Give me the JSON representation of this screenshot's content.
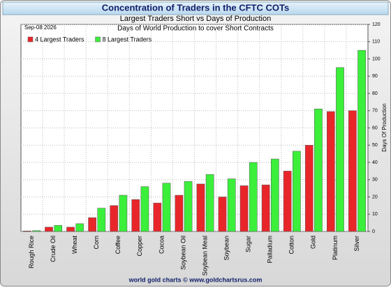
{
  "chart_data": {
    "type": "bar",
    "title": "Concentration of Traders in the CFTC COTs",
    "subtitle": "Largest Traders Short vs Days of Production",
    "plot_note": "Days of World Production to cover Short Contracts",
    "date": "Sep-08 2026",
    "y_label": "Days Of Production",
    "footer": "world gold charts © www.goldchartsrus.com",
    "categories": [
      "Rough Rice",
      "Crude Oil",
      "Wheat",
      "Corn",
      "Coffee",
      "Copper",
      "Cocoa",
      "Soybean Oil",
      "Soybean Meal",
      "Soybean",
      "Sugar",
      "Palladium",
      "Cotton",
      "Gold",
      "Platinum",
      "Silver"
    ],
    "series": [
      {
        "name": "4 Largest Traders",
        "color": "#e8262a",
        "values": [
          0.3,
          2.5,
          2.5,
          8,
          15,
          18.5,
          16.5,
          21,
          27.5,
          20,
          26.5,
          27,
          35,
          50,
          69.5,
          70
        ]
      },
      {
        "name": "8 Largest Traders",
        "color": "#3bef3b",
        "values": [
          0.5,
          3.5,
          4.5,
          13.5,
          21,
          26,
          28,
          29,
          33,
          30.5,
          40,
          42,
          46.5,
          71,
          95,
          105
        ]
      }
    ],
    "ylim": [
      0,
      120
    ],
    "yticks": [
      0,
      10,
      20,
      30,
      40,
      50,
      60,
      70,
      80,
      90,
      100,
      110,
      120
    ],
    "grid": true,
    "legend": "top-left"
  }
}
